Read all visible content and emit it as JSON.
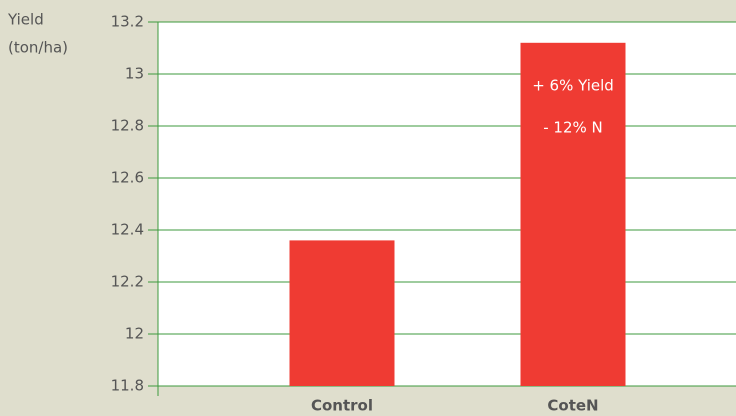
{
  "chart_data": {
    "type": "bar",
    "ylabel": [
      "Yield",
      "(ton/ha)"
    ],
    "categories": [
      "Control",
      "CoteN"
    ],
    "values": [
      12.36,
      13.12
    ],
    "color": "#ef3b33",
    "annotations": [
      "+ 6% Yield",
      "- 12% N"
    ],
    "ylim": [
      11.8,
      13.2
    ],
    "yticks": [
      11.8,
      12,
      12.2,
      12.4,
      12.6,
      12.8,
      13,
      13.2
    ],
    "grid": true
  }
}
